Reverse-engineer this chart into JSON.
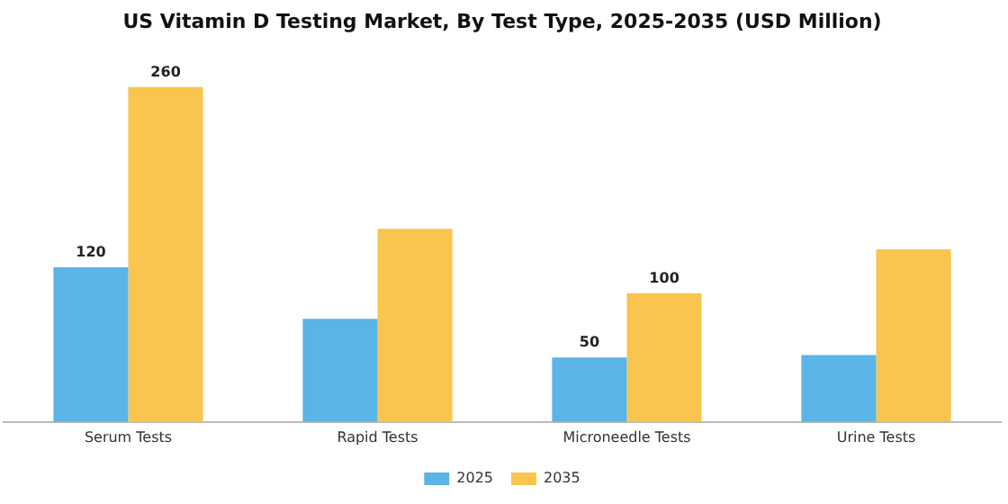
{
  "chart_data": {
    "type": "bar",
    "title": "US Vitamin D Testing Market, By Test Type, 2025-2035 (USD Million)",
    "categories": [
      "Serum Tests",
      "Rapid Tests",
      "Microneedle Tests",
      "Urine Tests"
    ],
    "series": [
      {
        "name": "2025",
        "color": "#5ab4e6",
        "values": [
          120,
          80,
          50,
          52
        ],
        "value_labels": [
          "120",
          null,
          "50",
          null
        ]
      },
      {
        "name": "2035",
        "color": "#f9c54e",
        "values": [
          260,
          150,
          100,
          134
        ],
        "value_labels": [
          "260",
          null,
          "100",
          null
        ]
      }
    ],
    "grid": false,
    "legend": "bottom"
  }
}
